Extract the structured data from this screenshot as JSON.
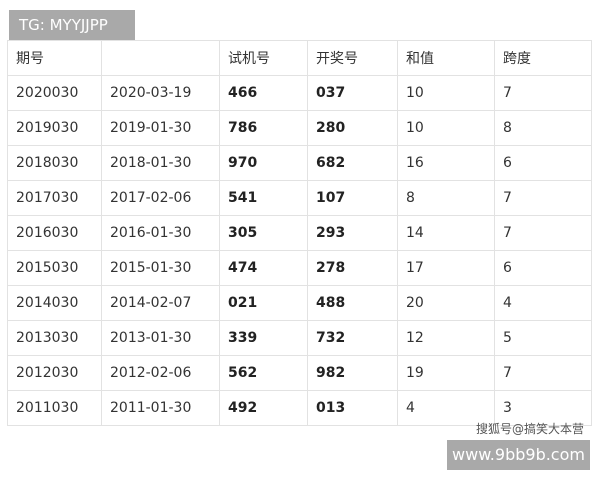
{
  "tg_label": "TG: MYYJJPP",
  "headers": [
    "期号",
    "",
    "试机号",
    "开奖号",
    "和值",
    "跨度"
  ],
  "rows": [
    [
      "2020030",
      "2020-03-19",
      "466",
      "037",
      "10",
      "7"
    ],
    [
      "2019030",
      "2019-01-30",
      "786",
      "280",
      "10",
      "8"
    ],
    [
      "2018030",
      "2018-01-30",
      "970",
      "682",
      "16",
      "6"
    ],
    [
      "2017030",
      "2017-02-06",
      "541",
      "107",
      "8",
      "7"
    ],
    [
      "2016030",
      "2016-01-30",
      "305",
      "293",
      "14",
      "7"
    ],
    [
      "2015030",
      "2015-01-30",
      "474",
      "278",
      "17",
      "6"
    ],
    [
      "2014030",
      "2014-02-07",
      "021",
      "488",
      "20",
      "4"
    ],
    [
      "2013030",
      "2013-01-30",
      "339",
      "732",
      "12",
      "5"
    ],
    [
      "2012030",
      "2012-02-06",
      "562",
      "982",
      "19",
      "7"
    ],
    [
      "2011030",
      "2011-01-30",
      "492",
      "013",
      "4",
      "3"
    ]
  ],
  "watermark": "搜狐号@搞笑大本营",
  "url_label": "www.9bb9b.com"
}
